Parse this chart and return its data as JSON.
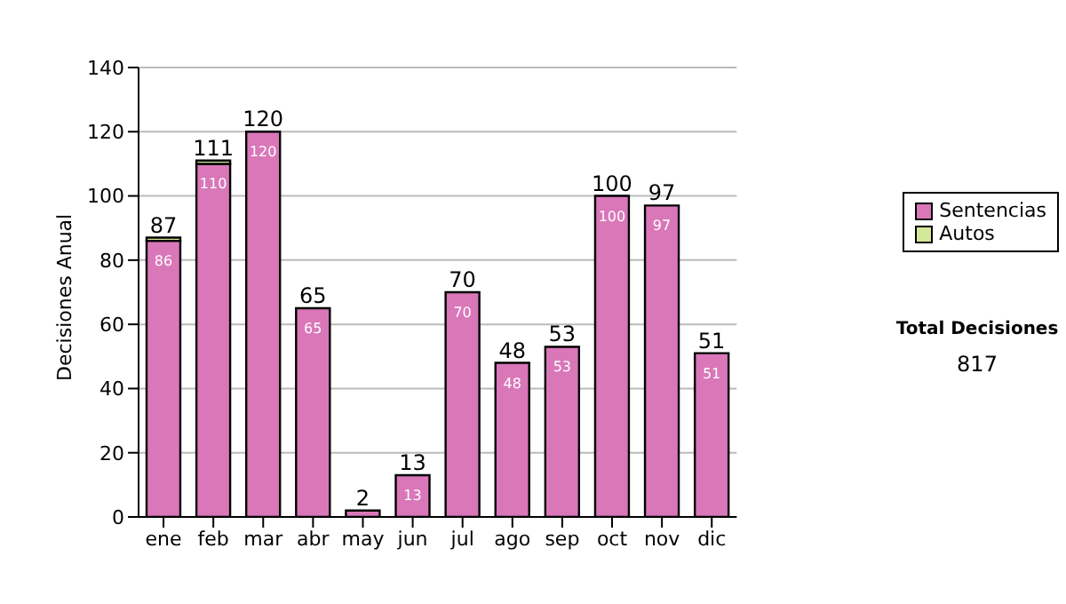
{
  "chart_data": {
    "type": "bar",
    "stacked": true,
    "ylabel": "Decisiones Anual",
    "categories": [
      "ene",
      "feb",
      "mar",
      "abr",
      "may",
      "jun",
      "jul",
      "ago",
      "sep",
      "oct",
      "nov",
      "dic"
    ],
    "series": [
      {
        "name": "Sentencias",
        "color": "#d977b9",
        "values": [
          86,
          110,
          120,
          65,
          2,
          13,
          70,
          48,
          53,
          100,
          97,
          51
        ],
        "value_labels": [
          "86",
          "110",
          "120",
          "65",
          null,
          "13",
          "70",
          "48",
          "53",
          "100",
          "97",
          "51"
        ]
      },
      {
        "name": "Autos",
        "color": "#d4e89a",
        "values": [
          1,
          1,
          0,
          0,
          0,
          0,
          0,
          0,
          0,
          0,
          0,
          0
        ]
      }
    ],
    "totals": [
      "87",
      "111",
      "120",
      "65",
      "2",
      "13",
      "70",
      "48",
      "53",
      "100",
      "97",
      "51"
    ],
    "ylim": [
      0,
      140
    ],
    "yticks": [
      0,
      20,
      40,
      60,
      80,
      100,
      120,
      140
    ],
    "grid": "y",
    "legend": "right",
    "annotations": [
      "Total Decisiones",
      "817"
    ]
  }
}
